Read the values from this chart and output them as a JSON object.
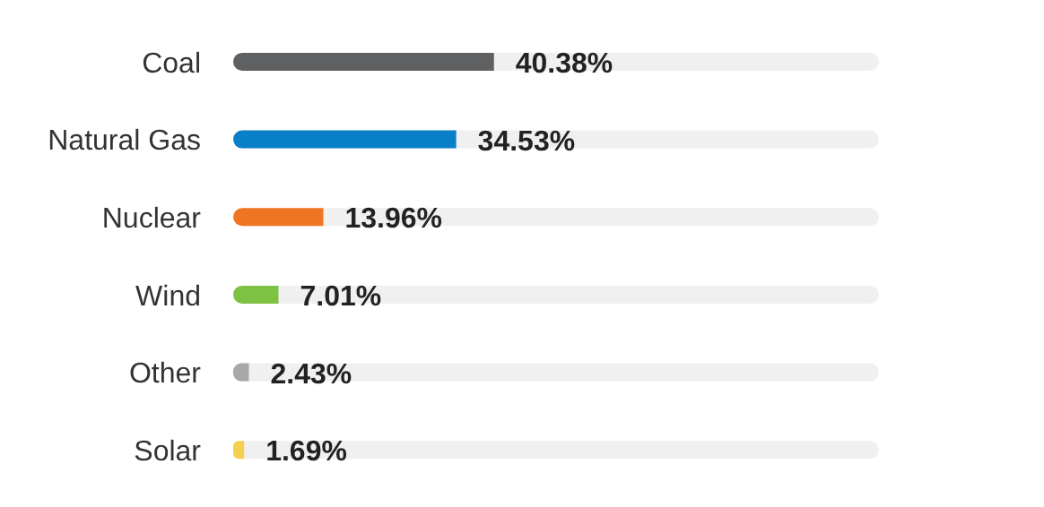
{
  "chart_data": {
    "type": "bar",
    "orientation": "horizontal",
    "categories": [
      "Coal",
      "Natural Gas",
      "Nuclear",
      "Wind",
      "Other",
      "Solar"
    ],
    "values": [
      40.38,
      34.53,
      13.96,
      7.01,
      2.43,
      1.69
    ],
    "colors": [
      "#5f6062",
      "#0a7fc9",
      "#ee7623",
      "#7dc242",
      "#a8a8a8",
      "#f5d04f"
    ],
    "value_labels": [
      "40.38%",
      "34.53%",
      "13.96%",
      "7.01%",
      "2.43%",
      "1.69%"
    ],
    "xlim": [
      0,
      100
    ],
    "tick_labels": "y"
  }
}
